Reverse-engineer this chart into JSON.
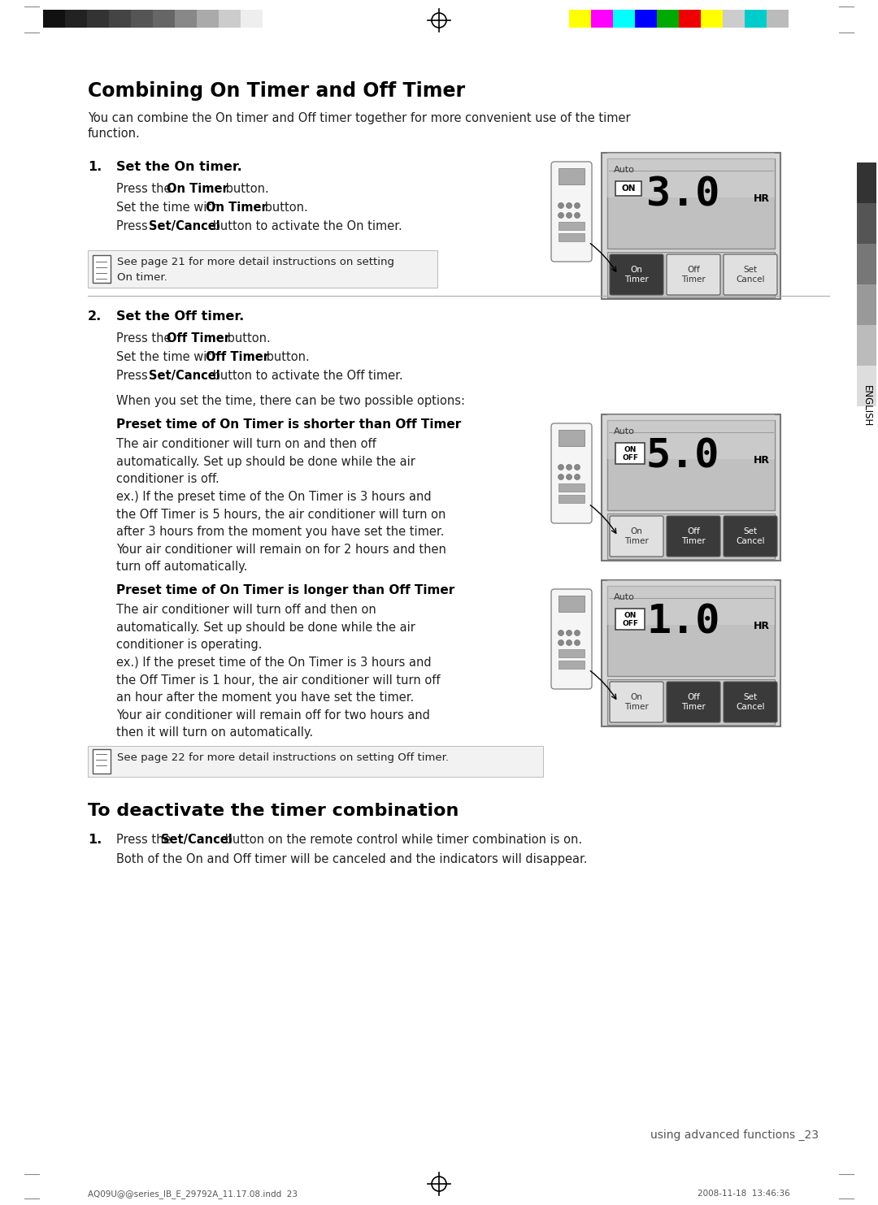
{
  "page_bg": "#ffffff",
  "top_bw_colors": [
    "#111111",
    "#222222",
    "#333333",
    "#444444",
    "#555555",
    "#666666",
    "#888888",
    "#aaaaaa",
    "#cccccc",
    "#eeeeee"
  ],
  "top_rgb_colors": [
    "#ffff00",
    "#ff00ff",
    "#00ffff",
    "#0000ff",
    "#00aa00",
    "#ee0000",
    "#ffff00",
    "#cccccc",
    "#00cccc",
    "#bbbbbb"
  ],
  "title": "Combining On Timer and Off Timer",
  "intro_line1": "You can combine the On timer and Off timer together for more convenient use of the timer",
  "intro_line2": "function.",
  "s1_num": "1.",
  "s1_head": "Set the On timer.",
  "s1_l1a": "Press the ",
  "s1_l1b": "On Timer",
  "s1_l1c": " button.",
  "s1_l2a": "Set the time with ",
  "s1_l2b": "On Timer",
  "s1_l2c": " button.",
  "s1_l3a": "Press ",
  "s1_l3b": "Set/Cancel",
  "s1_l3c": " button to activate the On timer.",
  "note1_text": "See page 21 for more detail instructions on setting\nOn timer.",
  "s2_num": "2.",
  "s2_head": "Set the Off timer.",
  "s2_l1a": "Press the ",
  "s2_l1b": "Off Timer",
  "s2_l1c": " button.",
  "s2_l2a": "Set the time with ",
  "s2_l2b": "Off Timer",
  "s2_l2c": " button.",
  "s2_l3a": "Press ",
  "s2_l3b": "Set/Cancel",
  "s2_l3c": " button to activate the Off timer.",
  "s2_options": "When you set the time, there can be two possible options:",
  "sub1_head": "Preset time of On Timer is shorter than Off Timer",
  "sub1_p1": "The air conditioner will turn on and then off\nautomatically. Set up should be done while the air\nconditioner is off.",
  "sub1_p2": "ex.) If the preset time of the On Timer is 3 hours and\nthe Off Timer is 5 hours, the air conditioner will turn on\nafter 3 hours from the moment you have set the timer.\nYour air conditioner will remain on for 2 hours and then\nturn off automatically.",
  "sub2_head": "Preset time of On Timer is longer than Off Timer",
  "sub2_p1": "The air conditioner will turn off and then on\nautomatically. Set up should be done while the air\nconditioner is operating.",
  "sub2_p2": "ex.) If the preset time of the On Timer is 3 hours and\nthe Off Timer is 1 hour, the air conditioner will turn off\nan hour after the moment you have set the timer.\nYour air conditioner will remain off for two hours and\nthen it will turn on automatically.",
  "note2_text": "See page 22 for more detail instructions on setting Off timer.",
  "s3_head": "To deactivate the timer combination",
  "s3_num": "1.",
  "s3_l1a": "Press the ",
  "s3_l1b": "Set/Cancel",
  "s3_l1c": " button on the remote control while timer combination is on.",
  "s3_l2": "Both of the On and Off timer will be canceled and the indicators will disappear.",
  "footer_page": "using advanced functions _23",
  "footer_left": "AQ09U@@series_IB_E_29792A_11.17.08.indd  23",
  "footer_right": "2008-11-18  13:46:36",
  "english_text": "ENGLISH",
  "disp1_num": "3.0",
  "disp1_label": "ON",
  "disp2_num": "5.0",
  "disp2_label1": "ON",
  "disp2_label2": "OFF",
  "disp3_num": "1.0",
  "disp3_label1": "ON",
  "disp3_label2": "OFF"
}
